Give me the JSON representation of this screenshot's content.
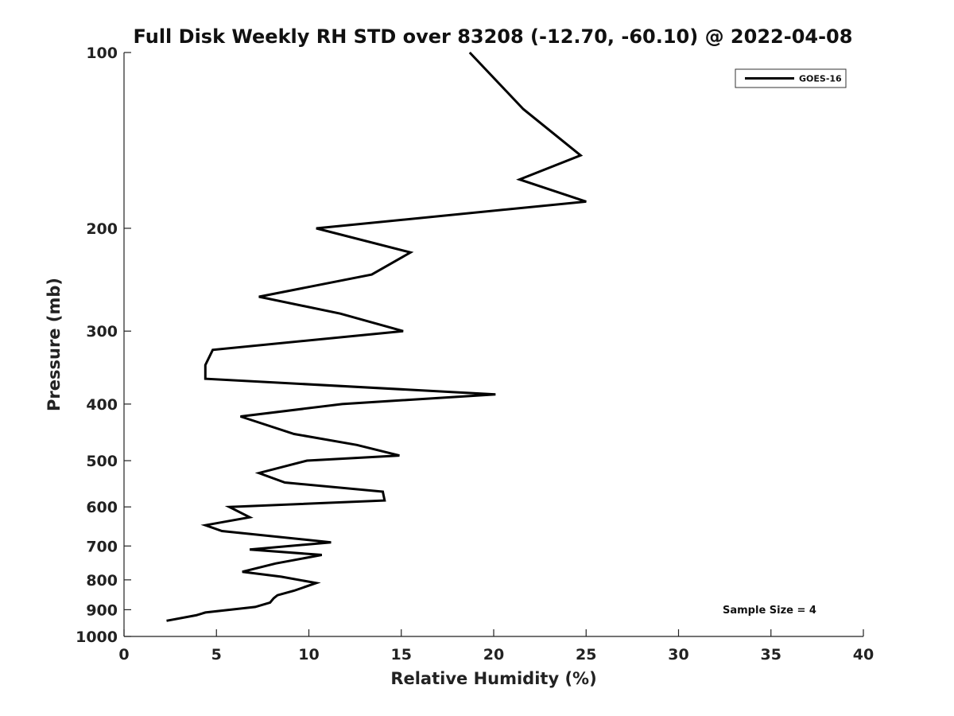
{
  "chart_data": {
    "type": "line",
    "title": "Full Disk Weekly RH STD over 83208 (-12.70, -60.10) @ 2022-04-08",
    "xlabel": "Relative Humidity (%)",
    "ylabel": "Pressure (mb)",
    "xlim": [
      0,
      40
    ],
    "ylim": [
      100,
      1000
    ],
    "y_scale": "log",
    "y_inverted": true,
    "x_ticks": [
      0,
      5,
      10,
      15,
      20,
      25,
      30,
      35,
      40
    ],
    "y_ticks": [
      100,
      200,
      300,
      400,
      500,
      600,
      700,
      800,
      900,
      1000
    ],
    "grid": false,
    "legend_position": "top-right",
    "annotation": "Sample Size = 4",
    "series": [
      {
        "name": "GOES-16",
        "color": "#000000",
        "points": [
          [
            18.7,
            100
          ],
          [
            21.6,
            125
          ],
          [
            24.7,
            150
          ],
          [
            21.4,
            165
          ],
          [
            25.0,
            180
          ],
          [
            10.4,
            200
          ],
          [
            15.5,
            220
          ],
          [
            13.4,
            240
          ],
          [
            7.3,
            262
          ],
          [
            11.7,
            280
          ],
          [
            15.1,
            300
          ],
          [
            4.8,
            323
          ],
          [
            4.4,
            343
          ],
          [
            4.4,
            362
          ],
          [
            20.1,
            385
          ],
          [
            11.8,
            400
          ],
          [
            6.3,
            420
          ],
          [
            9.2,
            450
          ],
          [
            12.6,
            470
          ],
          [
            14.9,
            490
          ],
          [
            9.9,
            500
          ],
          [
            7.3,
            525
          ],
          [
            8.7,
            545
          ],
          [
            14.0,
            565
          ],
          [
            14.1,
            585
          ],
          [
            5.7,
            600
          ],
          [
            6.8,
            625
          ],
          [
            4.4,
            645
          ],
          [
            5.3,
            660
          ],
          [
            11.2,
            690
          ],
          [
            6.8,
            710
          ],
          [
            10.7,
            725
          ],
          [
            8.2,
            750
          ],
          [
            6.4,
            775
          ],
          [
            8.5,
            790
          ],
          [
            10.4,
            810
          ],
          [
            9.2,
            835
          ],
          [
            8.3,
            850
          ],
          [
            8.1,
            860
          ],
          [
            7.9,
            875
          ],
          [
            7.1,
            890
          ],
          [
            4.4,
            910
          ],
          [
            3.9,
            920
          ],
          [
            2.3,
            940
          ]
        ]
      }
    ]
  }
}
